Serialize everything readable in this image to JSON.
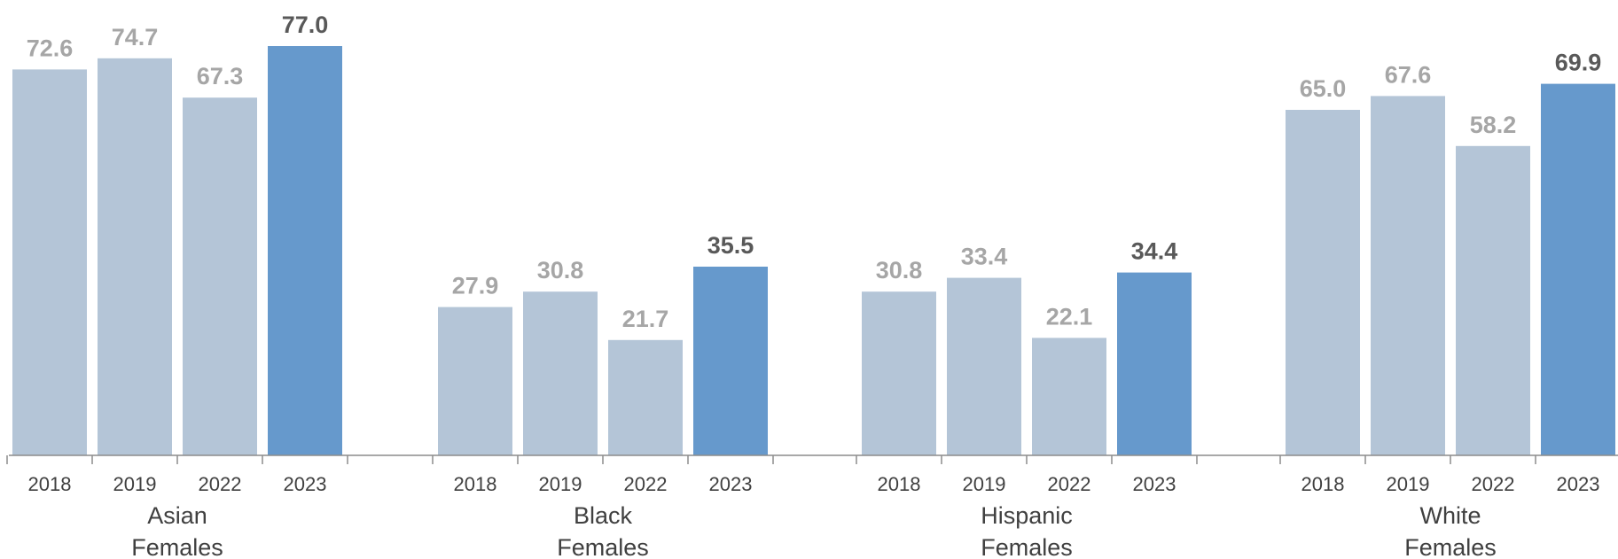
{
  "chart_data": {
    "type": "bar",
    "groups": [
      "Asian Females",
      "Black Females",
      "Hispanic Females",
      "White Females"
    ],
    "group_label_lines": [
      [
        "Asian",
        "Females"
      ],
      [
        "Black",
        "Females"
      ],
      [
        "Hispanic",
        "Females"
      ],
      [
        "White",
        "Females"
      ]
    ],
    "categories": [
      "2018",
      "2019",
      "2022",
      "2023"
    ],
    "values": [
      [
        72.6,
        74.7,
        67.3,
        77.0
      ],
      [
        27.9,
        30.8,
        21.7,
        35.5
      ],
      [
        30.8,
        33.4,
        22.1,
        34.4
      ],
      [
        65.0,
        67.6,
        58.2,
        69.9
      ]
    ],
    "value_labels": [
      [
        "72.6",
        "74.7",
        "67.3",
        "77.0"
      ],
      [
        "27.9",
        "30.8",
        "21.7",
        "35.5"
      ],
      [
        "30.8",
        "33.4",
        "22.1",
        "34.4"
      ],
      [
        "65.0",
        "67.6",
        "58.2",
        "69.9"
      ]
    ],
    "ylim": [
      0,
      80
    ],
    "title": "",
    "xlabel": "",
    "ylabel": "",
    "grid": false,
    "highlight_category": "2023",
    "colors": {
      "bar": "#b4c5d7",
      "highlight_bar": "#6699cc",
      "value_label": "#a6a6a6",
      "highlight_value_label": "#595959",
      "axis": "#8c8c8c"
    }
  }
}
